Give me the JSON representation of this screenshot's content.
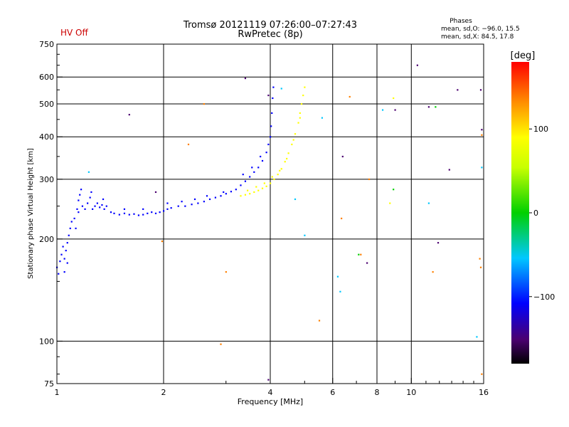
{
  "title_line1": "Tromsø 20121119 07:26:00–07:27:43",
  "title_line2": "RwPretec (8p)",
  "status_text": "HV Off",
  "phases": {
    "header": "Phases",
    "line_o": "mean, sd,O: −96.0, 15.5",
    "line_x": "mean, sd,X:  84.5, 17.8"
  },
  "colorbar": {
    "label": "[deg]",
    "ticks": [
      {
        "value": 100,
        "label": "100"
      },
      {
        "value": 0,
        "label": "0"
      },
      {
        "value": -100,
        "label": "−100"
      }
    ],
    "range": [
      -180,
      180
    ],
    "colors": [
      {
        "pos": 0.0,
        "color": "#000000"
      },
      {
        "pos": 0.08,
        "color": "#4b0070"
      },
      {
        "pos": 0.2,
        "color": "#0000ff"
      },
      {
        "pos": 0.35,
        "color": "#00c8ff"
      },
      {
        "pos": 0.5,
        "color": "#00d000"
      },
      {
        "pos": 0.65,
        "color": "#c8ff00"
      },
      {
        "pos": 0.75,
        "color": "#ffff00"
      },
      {
        "pos": 0.88,
        "color": "#ff8000"
      },
      {
        "pos": 1.0,
        "color": "#ff0000"
      }
    ]
  },
  "chart_data": {
    "type": "scatter",
    "xlabel": "Frequency [MHz]",
    "ylabel": "Stationary phase Virtual Height [km]",
    "xscale": "log",
    "yscale": "log",
    "xlim": [
      1,
      16
    ],
    "ylim": [
      75,
      750
    ],
    "xticks": [
      {
        "value": 1,
        "label": "1"
      },
      {
        "value": 2,
        "label": "2"
      },
      {
        "value": 4,
        "label": "4"
      },
      {
        "value": 6,
        "label": "6"
      },
      {
        "value": 8,
        "label": "8"
      },
      {
        "value": 10,
        "label": "10"
      },
      {
        "value": 16,
        "label": "16"
      }
    ],
    "yticks": [
      {
        "value": 75,
        "label": "75"
      },
      {
        "value": 100,
        "label": "100"
      },
      {
        "value": 200,
        "label": "200"
      },
      {
        "value": 300,
        "label": "300"
      },
      {
        "value": 400,
        "label": "400"
      },
      {
        "value": 500,
        "label": "500"
      },
      {
        "value": 600,
        "label": "600"
      },
      {
        "value": 750,
        "label": "750"
      }
    ],
    "grid_x": [
      2,
      4,
      6,
      8,
      10
    ],
    "grid_y": [
      100,
      200,
      300,
      400,
      500,
      600
    ],
    "grid": true,
    "series": [
      {
        "color": "#0000ff",
        "points": [
          [
            1.0,
            165
          ],
          [
            1.01,
            158
          ],
          [
            1.02,
            172
          ],
          [
            1.03,
            180
          ],
          [
            1.04,
            190
          ],
          [
            1.05,
            175
          ],
          [
            1.06,
            185
          ],
          [
            1.07,
            195
          ],
          [
            1.08,
            205
          ],
          [
            1.09,
            215
          ],
          [
            1.1,
            225
          ],
          [
            1.12,
            230
          ],
          [
            1.13,
            215
          ],
          [
            1.14,
            245
          ],
          [
            1.15,
            260
          ],
          [
            1.16,
            270
          ],
          [
            1.18,
            250
          ],
          [
            1.2,
            245
          ],
          [
            1.22,
            255
          ],
          [
            1.24,
            265
          ],
          [
            1.26,
            245
          ],
          [
            1.28,
            250
          ],
          [
            1.3,
            255
          ],
          [
            1.32,
            248
          ],
          [
            1.34,
            252
          ],
          [
            1.36,
            245
          ],
          [
            1.38,
            250
          ],
          [
            1.42,
            240
          ],
          [
            1.45,
            238
          ],
          [
            1.5,
            236
          ],
          [
            1.55,
            238
          ],
          [
            1.6,
            236
          ],
          [
            1.65,
            237
          ],
          [
            1.7,
            235
          ],
          [
            1.75,
            236
          ],
          [
            1.8,
            238
          ],
          [
            1.85,
            240
          ],
          [
            1.9,
            238
          ],
          [
            1.95,
            240
          ],
          [
            2.0,
            242
          ],
          [
            2.05,
            245
          ],
          [
            2.1,
            247
          ],
          [
            2.2,
            250
          ],
          [
            2.3,
            250
          ],
          [
            2.4,
            253
          ],
          [
            2.5,
            255
          ],
          [
            2.6,
            258
          ],
          [
            2.7,
            262
          ],
          [
            2.8,
            265
          ],
          [
            2.9,
            268
          ],
          [
            3.0,
            272
          ],
          [
            3.1,
            276
          ],
          [
            3.2,
            280
          ],
          [
            3.3,
            288
          ],
          [
            3.4,
            296
          ],
          [
            3.5,
            305
          ],
          [
            3.6,
            315
          ],
          [
            3.7,
            325
          ],
          [
            3.8,
            340
          ],
          [
            3.9,
            360
          ],
          [
            3.95,
            380
          ],
          [
            4.0,
            400
          ],
          [
            4.02,
            430
          ],
          [
            4.04,
            470
          ],
          [
            4.06,
            520
          ],
          [
            4.08,
            560
          ],
          [
            1.05,
            160
          ],
          [
            1.07,
            170
          ],
          [
            1.15,
            240
          ],
          [
            1.17,
            280
          ],
          [
            1.25,
            275
          ],
          [
            1.35,
            262
          ],
          [
            1.55,
            245
          ],
          [
            1.75,
            245
          ],
          [
            2.05,
            255
          ],
          [
            2.25,
            258
          ],
          [
            2.45,
            262
          ],
          [
            2.65,
            268
          ],
          [
            2.95,
            275
          ],
          [
            3.35,
            310
          ],
          [
            3.55,
            325
          ],
          [
            3.75,
            350
          ]
        ]
      },
      {
        "color": "#ffff00",
        "points": [
          [
            3.3,
            268
          ],
          [
            3.4,
            270
          ],
          [
            3.5,
            272
          ],
          [
            3.6,
            275
          ],
          [
            3.7,
            278
          ],
          [
            3.8,
            282
          ],
          [
            3.9,
            286
          ],
          [
            4.0,
            292
          ],
          [
            4.1,
            300
          ],
          [
            4.2,
            310
          ],
          [
            4.3,
            322
          ],
          [
            4.4,
            338
          ],
          [
            4.5,
            358
          ],
          [
            4.6,
            380
          ],
          [
            4.7,
            408
          ],
          [
            4.8,
            440
          ],
          [
            4.85,
            470
          ],
          [
            4.9,
            500
          ],
          [
            4.95,
            530
          ],
          [
            5.0,
            560
          ],
          [
            3.45,
            278
          ],
          [
            3.65,
            285
          ],
          [
            3.85,
            292
          ],
          [
            4.05,
            305
          ],
          [
            4.25,
            318
          ],
          [
            4.45,
            345
          ],
          [
            4.65,
            392
          ],
          [
            4.85,
            455
          ],
          [
            8.9,
            520
          ],
          [
            8.7,
            255
          ]
        ]
      },
      {
        "color": "#ff8000",
        "points": [
          [
            2.6,
            500
          ],
          [
            2.35,
            380
          ],
          [
            3.0,
            160
          ],
          [
            2.9,
            98
          ],
          [
            1.98,
            197
          ],
          [
            6.35,
            230
          ],
          [
            7.2,
            180
          ],
          [
            7.6,
            300
          ],
          [
            11.5,
            160
          ],
          [
            15.6,
            175
          ],
          [
            15.7,
            165
          ],
          [
            15.8,
            405
          ],
          [
            15.8,
            80
          ],
          [
            6.7,
            525
          ],
          [
            5.5,
            115
          ]
        ]
      },
      {
        "color": "#00c8ff",
        "points": [
          [
            4.3,
            555
          ],
          [
            5.6,
            455
          ],
          [
            5.0,
            205
          ],
          [
            6.2,
            155
          ],
          [
            6.3,
            140
          ],
          [
            8.3,
            480
          ],
          [
            11.2,
            255
          ],
          [
            15.3,
            103
          ],
          [
            15.8,
            325
          ],
          [
            1.23,
            315
          ],
          [
            4.7,
            262
          ]
        ]
      },
      {
        "color": "#00d000",
        "points": [
          [
            11.7,
            490
          ],
          [
            7.1,
            180
          ],
          [
            8.9,
            280
          ]
        ]
      },
      {
        "color": "#4b0070",
        "points": [
          [
            3.4,
            595
          ],
          [
            3.95,
            530
          ],
          [
            3.95,
            77
          ],
          [
            6.4,
            350
          ],
          [
            7.5,
            170
          ],
          [
            9.0,
            480
          ],
          [
            10.4,
            650
          ],
          [
            11.2,
            490
          ],
          [
            11.9,
            195
          ],
          [
            12.8,
            320
          ],
          [
            13.5,
            550
          ],
          [
            15.7,
            550
          ],
          [
            15.8,
            420
          ],
          [
            1.6,
            465
          ],
          [
            1.9,
            275
          ]
        ]
      }
    ]
  }
}
